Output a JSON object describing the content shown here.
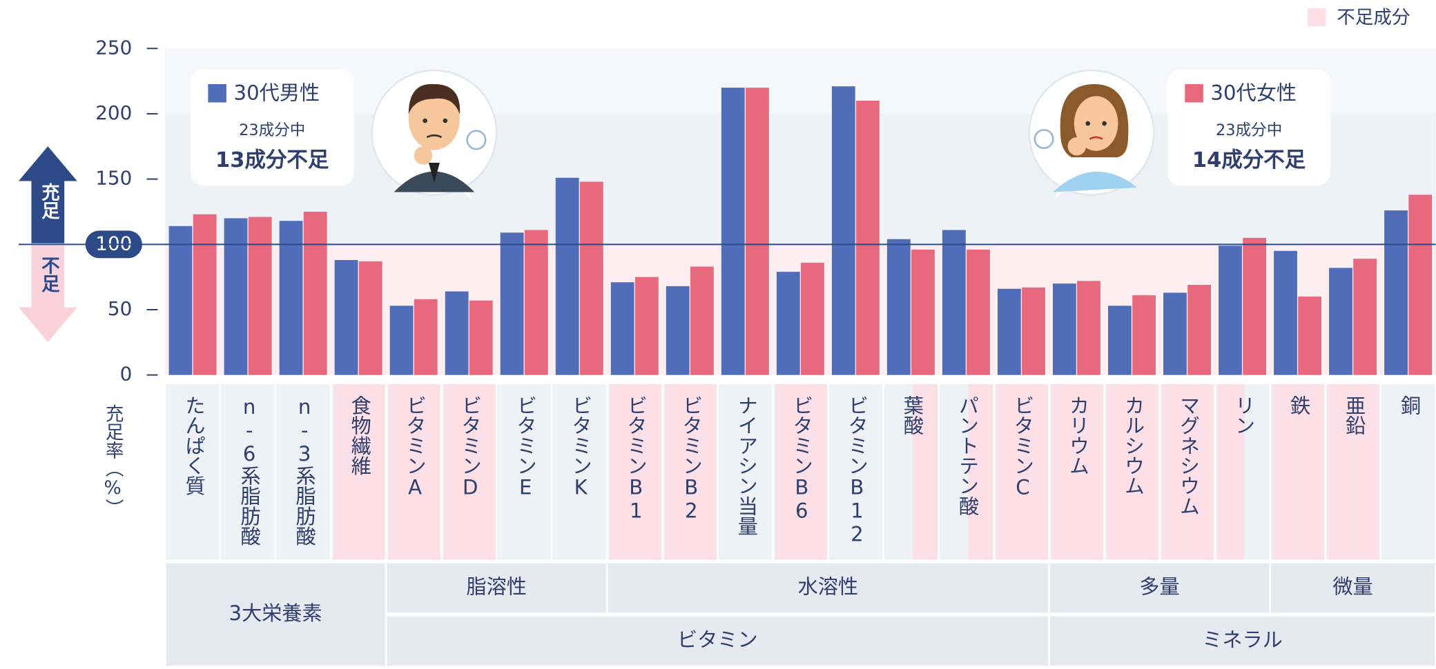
{
  "chart_data": {
    "type": "bar",
    "y_axis_label": "充足率（%）",
    "arrow_up_label": "充足",
    "arrow_down_label": "不足",
    "shortage_legend": "不足成分",
    "categories": [
      "たんぱく質",
      "n-6系脂肪酸",
      "n-3系脂肪酸",
      "食物繊維",
      "ビタミンA",
      "ビタミンD",
      "ビタミンE",
      "ビタミンK",
      "ビタミンB1",
      "ビタミンB2",
      "ナイアシン当量",
      "ビタミンB6",
      "ビタミンB12",
      "葉酸",
      "パントテン酸",
      "ビタミンC",
      "カリウム",
      "カルシウム",
      "マグネシウム",
      "リン",
      "鉄",
      "亜鉛",
      "銅"
    ],
    "series": [
      {
        "name": "30代男性",
        "color": "#4f6db8",
        "total": "23成分中",
        "shortage": "13成分不足",
        "values": [
          114,
          120,
          118,
          88,
          53,
          64,
          109,
          151,
          71,
          68,
          220,
          79,
          221,
          104,
          111,
          66,
          70,
          53,
          63,
          99,
          95,
          82,
          126
        ]
      },
      {
        "name": "30代女性",
        "color": "#e8697d",
        "total": "23成分中",
        "shortage": "14成分不足",
        "values": [
          123,
          121,
          125,
          87,
          58,
          57,
          111,
          148,
          75,
          83,
          220,
          86,
          210,
          96,
          96,
          67,
          72,
          61,
          69,
          105,
          60,
          89,
          138
        ]
      }
    ],
    "ylim": [
      0,
      250
    ],
    "yticks": [
      0,
      50,
      100,
      150,
      200,
      250
    ],
    "reference_line": 100,
    "groups_row1": [
      {
        "label": "3大栄養素",
        "size": 4
      },
      {
        "label": "脂溶性",
        "size": 4
      },
      {
        "label": "水溶性",
        "size": 8
      },
      {
        "label": "多量",
        "size": 4
      },
      {
        "label": "微量",
        "size": 3
      }
    ],
    "groups_row2": [
      {
        "label": "ビタミン",
        "size": 12
      },
      {
        "label": "ミネラル",
        "size": 7
      }
    ]
  }
}
